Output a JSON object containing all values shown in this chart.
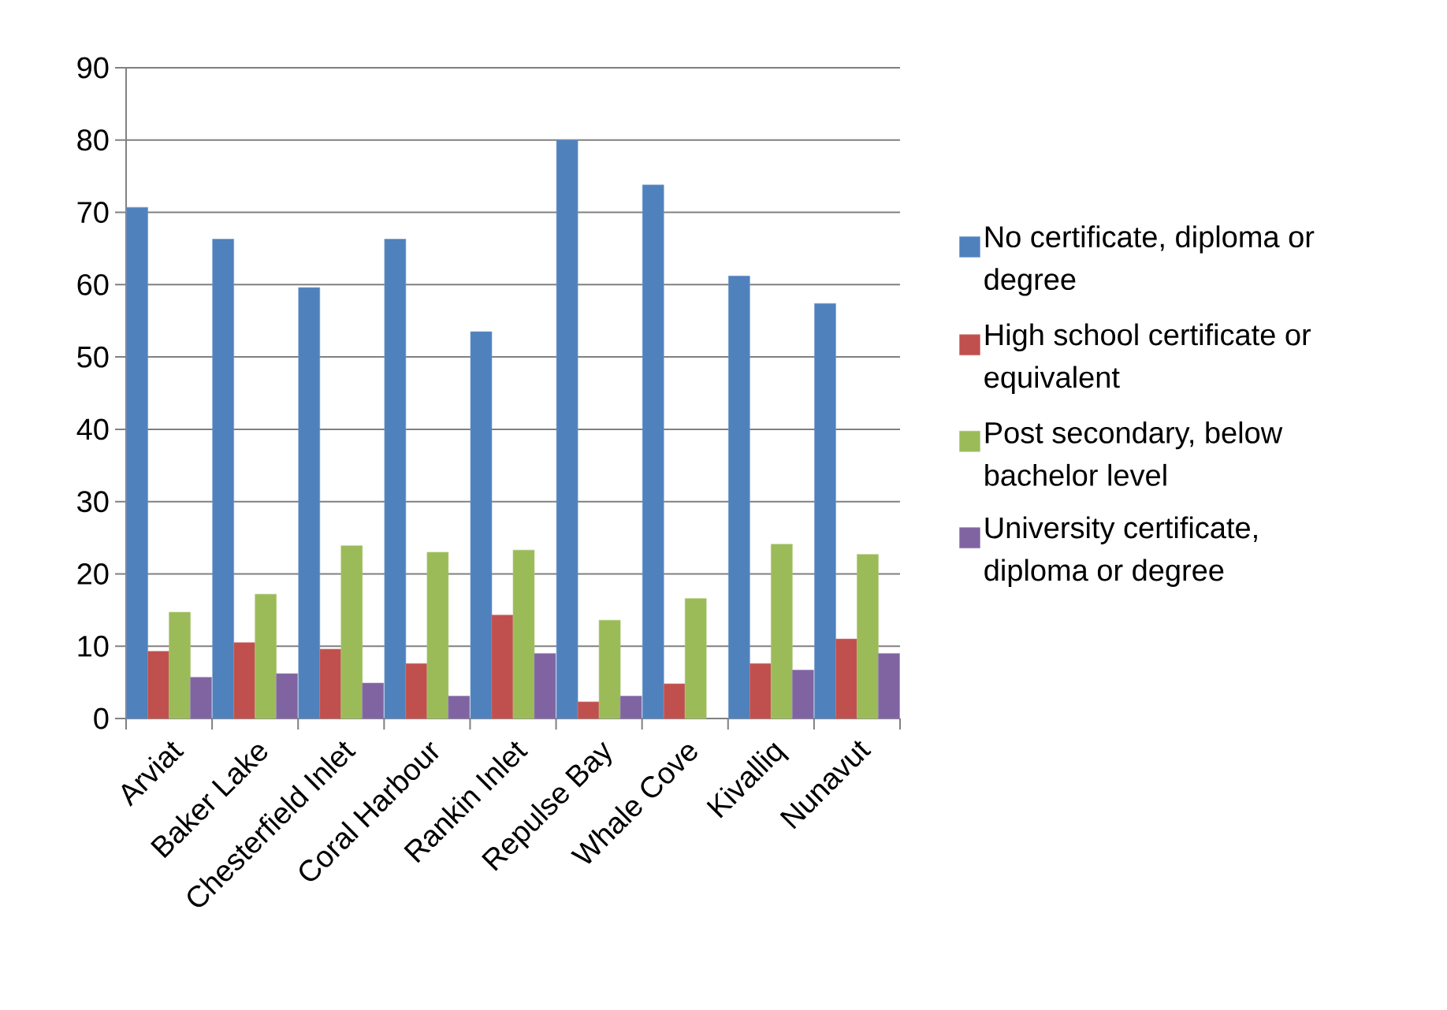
{
  "chart_data": {
    "type": "bar",
    "categories": [
      "Arviat",
      "Baker Lake",
      "Chesterfield Inlet",
      "Coral Harbour",
      "Rankin Inlet",
      "Repulse Bay",
      "Whale Cove",
      "Kivalliq",
      "Nunavut"
    ],
    "series": [
      {
        "name": "No certificate, diploma or degree",
        "color": "#4f81bd",
        "values": [
          70.7,
          66.3,
          59.6,
          66.3,
          53.5,
          80.0,
          73.8,
          61.2,
          57.4
        ]
      },
      {
        "name": "High school certificate or equivalent",
        "color": "#c0504d",
        "values": [
          9.3,
          10.5,
          9.6,
          7.6,
          14.3,
          2.3,
          4.8,
          7.6,
          11.0
        ]
      },
      {
        "name": "Post secondary, below bachelor level",
        "color": "#9bbb59",
        "values": [
          14.7,
          17.2,
          23.9,
          23.0,
          23.3,
          13.6,
          16.6,
          24.1,
          22.7
        ]
      },
      {
        "name": "University certificate, diploma or degree",
        "color": "#8064a2",
        "values": [
          5.7,
          6.2,
          4.9,
          3.1,
          9.0,
          3.1,
          null,
          6.7,
          9.0
        ]
      }
    ],
    "ylim": [
      0,
      90
    ],
    "yticks": [
      0,
      10,
      20,
      30,
      40,
      50,
      60,
      70,
      80,
      90
    ],
    "grid": "y",
    "legend": "right"
  }
}
